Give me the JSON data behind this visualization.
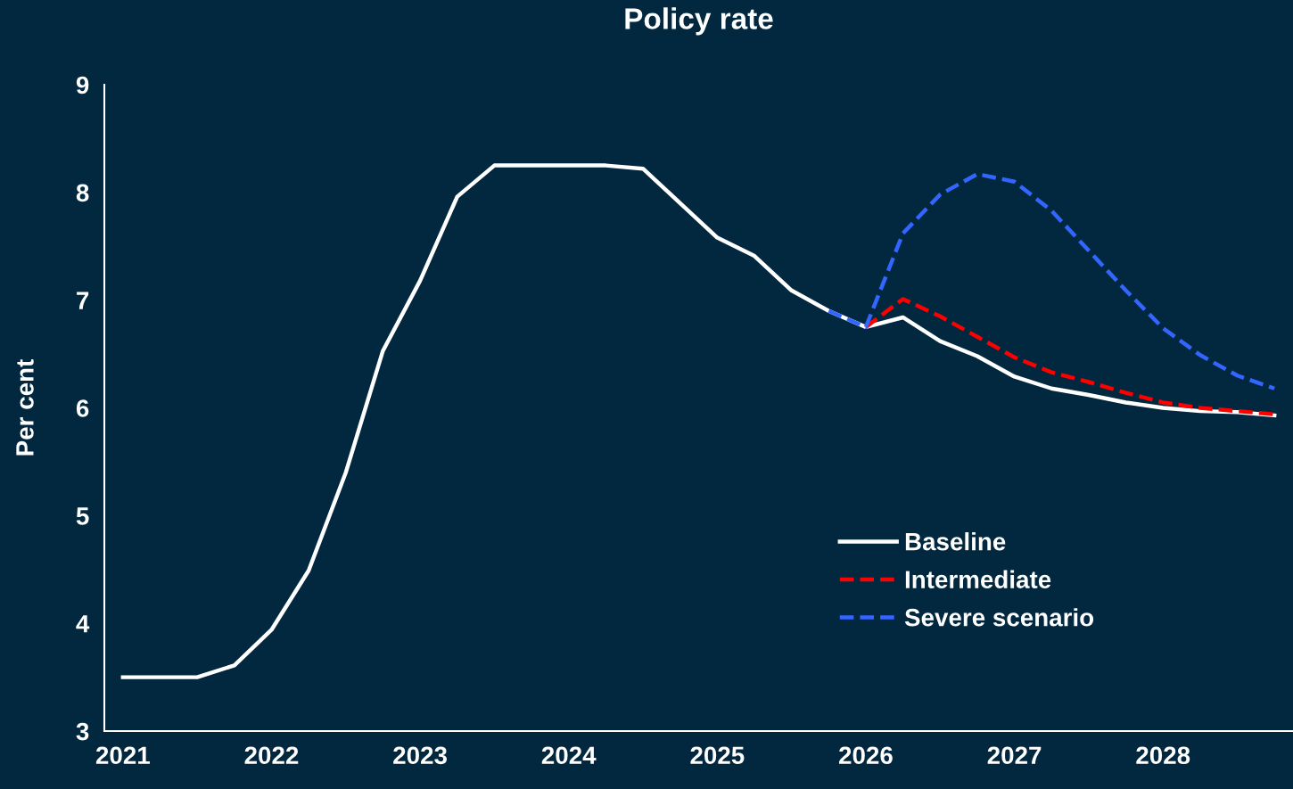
{
  "chart_data": {
    "type": "line",
    "title": "Policy rate",
    "ylabel": "Per cent",
    "categories": [
      "2021",
      null,
      null,
      null,
      "2022",
      null,
      null,
      null,
      "2023",
      null,
      null,
      null,
      "2024",
      null,
      null,
      null,
      "2025",
      null,
      null,
      null,
      "2026",
      null,
      null,
      null,
      "2027",
      null,
      null,
      null,
      "2028",
      null,
      null,
      null
    ],
    "series": [
      {
        "name": "Baseline",
        "color": "#ffffff",
        "line_style": "solid",
        "values": [
          3.5,
          3.5,
          3.5,
          3.61,
          3.94,
          4.49,
          5.4,
          6.53,
          7.18,
          7.96,
          8.25,
          8.25,
          8.25,
          8.25,
          8.22,
          7.9,
          7.58,
          7.41,
          7.09,
          6.9,
          6.75,
          6.84,
          6.62,
          6.48,
          6.29,
          6.18,
          6.12,
          6.05,
          6.0,
          5.97,
          5.96,
          5.93
        ]
      },
      {
        "name": "Intermediate",
        "color": "#ff0000",
        "line_style": "dashed",
        "values": [
          null,
          null,
          null,
          null,
          null,
          null,
          null,
          null,
          null,
          null,
          null,
          null,
          null,
          null,
          null,
          null,
          null,
          null,
          null,
          null,
          6.75,
          7.01,
          6.85,
          6.66,
          6.47,
          6.33,
          6.24,
          6.14,
          6.05,
          6.0,
          5.97,
          5.94
        ]
      },
      {
        "name": "Severe scenario",
        "color": "#3366ff",
        "line_style": "dashed",
        "values": [
          null,
          null,
          null,
          null,
          null,
          null,
          null,
          null,
          null,
          null,
          null,
          null,
          null,
          null,
          null,
          null,
          null,
          null,
          null,
          6.9,
          6.75,
          7.62,
          7.98,
          8.17,
          8.1,
          7.83,
          7.46,
          7.09,
          6.74,
          6.49,
          6.3,
          6.18
        ]
      }
    ],
    "ylim": [
      3,
      9
    ],
    "yticks": [
      3,
      4,
      5,
      6,
      7,
      8,
      9
    ],
    "grid": false,
    "legend": "right",
    "marker": "none"
  }
}
